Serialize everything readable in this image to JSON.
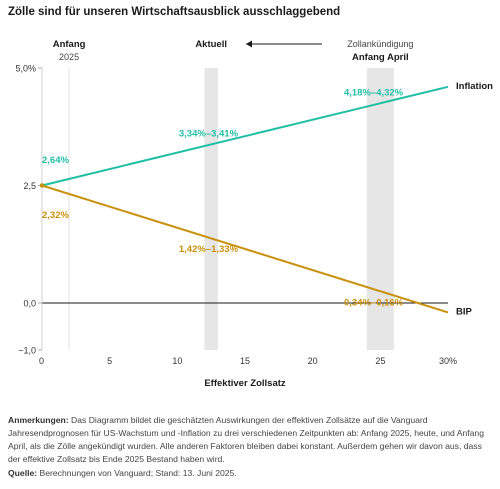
{
  "title": "Zölle sind für unseren Wirtschaftsausblick ausschlaggebend",
  "chart_data": {
    "type": "line",
    "xlabel": "Effektiver Zollsatz",
    "xlim": [
      0,
      30
    ],
    "ylim": [
      -1.0,
      5.0
    ],
    "x_ticks": [
      {
        "value": 0,
        "label": "0"
      },
      {
        "value": 5,
        "label": "5"
      },
      {
        "value": 10,
        "label": "10"
      },
      {
        "value": 15,
        "label": "15"
      },
      {
        "value": 20,
        "label": "20"
      },
      {
        "value": 25,
        "label": "25"
      },
      {
        "value": 30,
        "label": "30%"
      }
    ],
    "y_ticks": [
      {
        "value": 5.0,
        "label": "5,0%"
      },
      {
        "value": 2.5,
        "label": "2,5"
      },
      {
        "value": 0.0,
        "label": "0,0"
      },
      {
        "value": -1.0,
        "label": "−1,0"
      }
    ],
    "series": [
      {
        "name": "Inflation",
        "color": "#1fbfa6",
        "x": [
          0,
          30
        ],
        "y": [
          2.5,
          4.6
        ],
        "labels": [
          {
            "x": 0,
            "y": 2.64,
            "text": "2,64%"
          },
          {
            "x": 12.3,
            "y": 3.37,
            "text": "3,34%–3,41%"
          },
          {
            "x": 24.5,
            "y": 4.25,
            "text": "4,18%–4,32%"
          }
        ]
      },
      {
        "name": "BIP",
        "color": "#c9900c",
        "x": [
          0,
          30
        ],
        "y": [
          2.5,
          -0.2
        ],
        "labels": [
          {
            "x": 0,
            "y": 2.32,
            "text": "2,32%"
          },
          {
            "x": 12.3,
            "y": 1.38,
            "text": "1,42%–1,33%"
          },
          {
            "x": 24.5,
            "y": 0.25,
            "text": "0,34%–0,16%"
          }
        ]
      }
    ],
    "markers": [
      {
        "title": "Anfang",
        "subtitle": "2025",
        "x": 2.0,
        "type": "line"
      },
      {
        "title": "Aktuell",
        "subtitle": "",
        "x_range": [
          12.0,
          13.0
        ],
        "type": "band"
      },
      {
        "title": "Anfang April",
        "subtitle": "Zollankündigung",
        "x_range": [
          24.0,
          26.0
        ],
        "type": "band"
      }
    ],
    "grid": false,
    "legend": "inline-right"
  },
  "notes": {
    "label": "Anmerkungen:",
    "text": " Das Diagramm bildet die geschätzten Auswirkungen der effektiven Zollsätze auf die Vanguard Jahresendprognosen für US-Wachstum und -Inflation zu drei verschiedenen Zeitpunkten ab: Anfang 2025, heute, und Anfang April, als die Zölle angekündigt wurden. Alle anderen Faktoren bleiben dabei konstant. Außerdem gehen wir davon aus, dass der effektive Zollsatz bis Ende 2025 Bestand haben wird."
  },
  "source": {
    "label": "Quelle:",
    "text": " Berechnungen von Vanguard; Stand: 13. Juni 2025."
  }
}
